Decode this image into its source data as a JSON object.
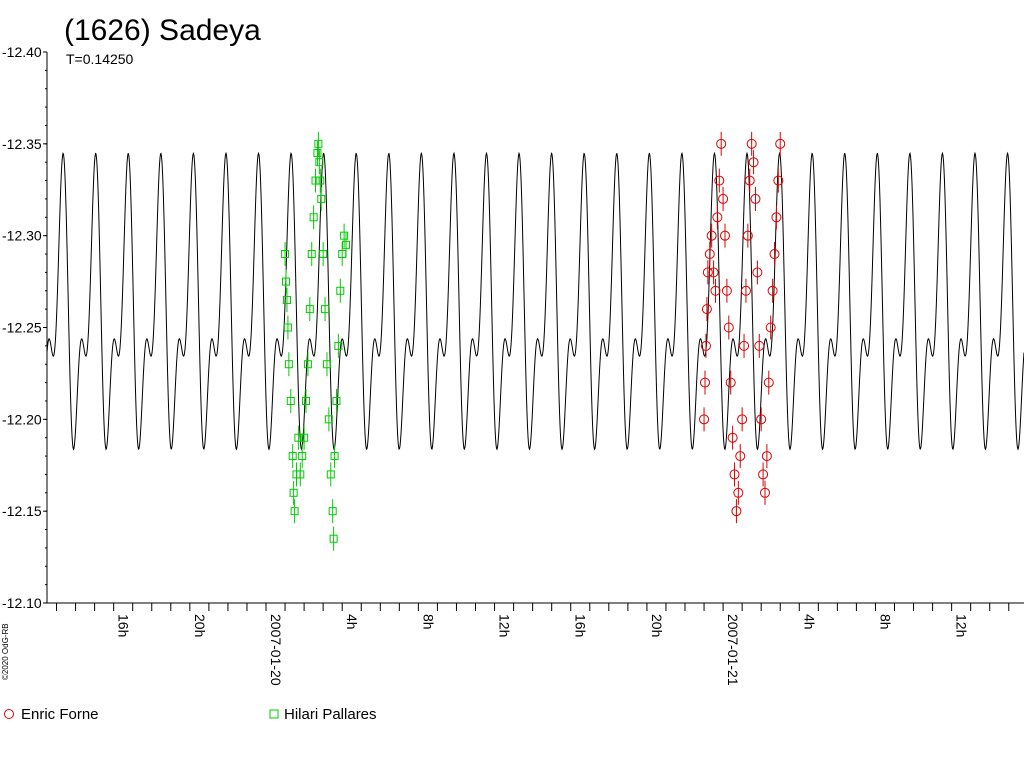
{
  "chart_data": {
    "type": "scatter",
    "title": "(1626) Sadeya",
    "subtitle": "T=0.14250",
    "ylim": [
      -12.4,
      -12.1
    ],
    "y_inverted": true,
    "y_ticks": [
      "-12.40",
      "-12.35",
      "-12.30",
      "-12.25",
      "-12.20",
      "-12.15",
      "-12.10"
    ],
    "x_range_hours": [
      12.5,
      63.8
    ],
    "x_ticks": [
      {
        "hour": 16,
        "label": "16h"
      },
      {
        "hour": 20,
        "label": "20h"
      },
      {
        "hour": 24,
        "label": "2007-01-20"
      },
      {
        "hour": 28,
        "label": "4h"
      },
      {
        "hour": 32,
        "label": "8h"
      },
      {
        "hour": 36,
        "label": "12h"
      },
      {
        "hour": 40,
        "label": "16h"
      },
      {
        "hour": 44,
        "label": "20h"
      },
      {
        "hour": 48,
        "label": "2007-01-21"
      },
      {
        "hour": 52,
        "label": "4h"
      },
      {
        "hour": 56,
        "label": "8h"
      },
      {
        "hour": 60,
        "label": "12h"
      }
    ],
    "fit_curve": {
      "description": "black lightcurve model",
      "mean": -12.255,
      "primary_period_h": 1.71,
      "amplitude": 0.085
    },
    "series": [
      {
        "name": "Hilari Pallares",
        "marker": "square",
        "color": "#00cc00",
        "points": [
          [
            25.0,
            -12.29
          ],
          [
            25.05,
            -12.275
          ],
          [
            25.1,
            -12.265
          ],
          [
            25.15,
            -12.25
          ],
          [
            25.2,
            -12.23
          ],
          [
            25.3,
            -12.21
          ],
          [
            25.4,
            -12.18
          ],
          [
            25.45,
            -12.16
          ],
          [
            25.5,
            -12.15
          ],
          [
            25.6,
            -12.17
          ],
          [
            25.7,
            -12.19
          ],
          [
            25.8,
            -12.17
          ],
          [
            25.9,
            -12.18
          ],
          [
            26.0,
            -12.19
          ],
          [
            26.1,
            -12.21
          ],
          [
            26.2,
            -12.23
          ],
          [
            26.3,
            -12.26
          ],
          [
            26.4,
            -12.29
          ],
          [
            26.5,
            -12.31
          ],
          [
            26.6,
            -12.33
          ],
          [
            26.7,
            -12.345
          ],
          [
            26.75,
            -12.35
          ],
          [
            26.8,
            -12.34
          ],
          [
            26.85,
            -12.33
          ],
          [
            26.9,
            -12.32
          ],
          [
            27.0,
            -12.29
          ],
          [
            27.1,
            -12.26
          ],
          [
            27.2,
            -12.23
          ],
          [
            27.3,
            -12.2
          ],
          [
            27.4,
            -12.17
          ],
          [
            27.5,
            -12.15
          ],
          [
            27.55,
            -12.135
          ],
          [
            27.6,
            -12.18
          ],
          [
            27.7,
            -12.21
          ],
          [
            27.8,
            -12.24
          ],
          [
            27.9,
            -12.27
          ],
          [
            28.0,
            -12.29
          ],
          [
            28.1,
            -12.3
          ],
          [
            28.2,
            -12.295
          ]
        ]
      },
      {
        "name": "Enric Forne",
        "marker": "circle",
        "color": "#dd0000",
        "points": [
          [
            47.0,
            -12.2
          ],
          [
            47.05,
            -12.22
          ],
          [
            47.1,
            -12.24
          ],
          [
            47.15,
            -12.26
          ],
          [
            47.2,
            -12.28
          ],
          [
            47.3,
            -12.29
          ],
          [
            47.4,
            -12.3
          ],
          [
            47.5,
            -12.28
          ],
          [
            47.6,
            -12.27
          ],
          [
            47.7,
            -12.31
          ],
          [
            47.8,
            -12.33
          ],
          [
            47.9,
            -12.35
          ],
          [
            48.0,
            -12.32
          ],
          [
            48.1,
            -12.3
          ],
          [
            48.2,
            -12.27
          ],
          [
            48.3,
            -12.25
          ],
          [
            48.4,
            -12.22
          ],
          [
            48.5,
            -12.19
          ],
          [
            48.6,
            -12.17
          ],
          [
            48.7,
            -12.15
          ],
          [
            48.8,
            -12.16
          ],
          [
            48.9,
            -12.18
          ],
          [
            49.0,
            -12.2
          ],
          [
            49.1,
            -12.24
          ],
          [
            49.2,
            -12.27
          ],
          [
            49.3,
            -12.3
          ],
          [
            49.4,
            -12.33
          ],
          [
            49.5,
            -12.35
          ],
          [
            49.6,
            -12.34
          ],
          [
            49.7,
            -12.32
          ],
          [
            49.8,
            -12.28
          ],
          [
            49.9,
            -12.24
          ],
          [
            50.0,
            -12.2
          ],
          [
            50.1,
            -12.17
          ],
          [
            50.2,
            -12.16
          ],
          [
            50.3,
            -12.18
          ],
          [
            50.4,
            -12.22
          ],
          [
            50.5,
            -12.25
          ],
          [
            50.6,
            -12.27
          ],
          [
            50.7,
            -12.29
          ],
          [
            50.8,
            -12.31
          ],
          [
            50.9,
            -12.33
          ],
          [
            51.0,
            -12.35
          ]
        ]
      }
    ],
    "legend": [
      {
        "label": "Enric Forne",
        "marker": "circle",
        "color": "#dd0000"
      },
      {
        "label": "Hilari Pallares",
        "marker": "square",
        "color": "#00cc00"
      }
    ],
    "credit": "©2020 OdG-RB"
  }
}
